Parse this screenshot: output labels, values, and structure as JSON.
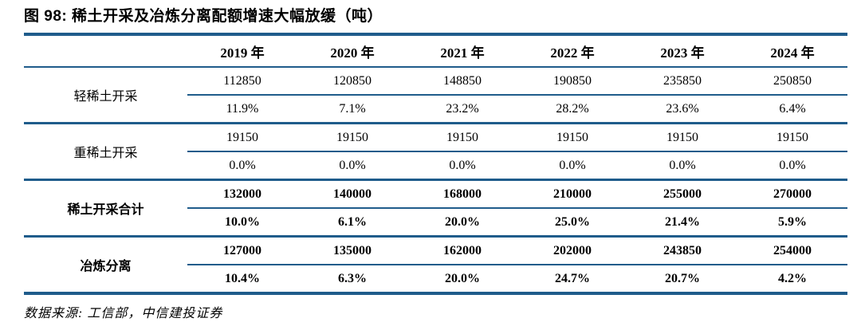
{
  "accent_color": "#1F5C8B",
  "figure": {
    "title": "图 98: 稀土开采及冶炼分离配额增速大幅放缓（吨）",
    "source_note": "数据来源: 工信部，中信建投证券"
  },
  "table": {
    "col_headers": [
      "2019 年",
      "2020 年",
      "2021 年",
      "2022 年",
      "2023 年",
      "2024 年"
    ],
    "groups": [
      {
        "label": "轻稀土开采",
        "values": [
          "112850",
          "120850",
          "148850",
          "190850",
          "235850",
          "250850"
        ],
        "growth": [
          "11.9%",
          "7.1%",
          "23.2%",
          "28.2%",
          "23.6%",
          "6.4%"
        ]
      },
      {
        "label": "重稀土开采",
        "values": [
          "19150",
          "19150",
          "19150",
          "19150",
          "19150",
          "19150"
        ],
        "growth": [
          "0.0%",
          "0.0%",
          "0.0%",
          "0.0%",
          "0.0%",
          "0.0%"
        ]
      },
      {
        "label": "稀土开采合计",
        "values": [
          "132000",
          "140000",
          "168000",
          "210000",
          "255000",
          "270000"
        ],
        "growth": [
          "10.0%",
          "6.1%",
          "20.0%",
          "25.0%",
          "21.4%",
          "5.9%"
        ]
      },
      {
        "label": "冶炼分离",
        "values": [
          "127000",
          "135000",
          "162000",
          "202000",
          "243850",
          "254000"
        ],
        "growth": [
          "10.4%",
          "6.3%",
          "20.0%",
          "24.7%",
          "20.7%",
          "4.2%"
        ]
      }
    ]
  },
  "chart_data": {
    "type": "table",
    "title": "稀土开采及冶炼分离配额增速大幅放缓（吨）",
    "categories": [
      "2019",
      "2020",
      "2021",
      "2022",
      "2023",
      "2024"
    ],
    "series": [
      {
        "name": "轻稀土开采",
        "values": [
          112850,
          120850,
          148850,
          190850,
          235850,
          250850
        ]
      },
      {
        "name": "轻稀土开采增速",
        "values": [
          "11.9%",
          "7.1%",
          "23.2%",
          "28.2%",
          "23.6%",
          "6.4%"
        ]
      },
      {
        "name": "重稀土开采",
        "values": [
          19150,
          19150,
          19150,
          19150,
          19150,
          19150
        ]
      },
      {
        "name": "重稀土开采增速",
        "values": [
          "0.0%",
          "0.0%",
          "0.0%",
          "0.0%",
          "0.0%",
          "0.0%"
        ]
      },
      {
        "name": "稀土开采合计",
        "values": [
          132000,
          140000,
          168000,
          210000,
          255000,
          270000
        ]
      },
      {
        "name": "稀土开采合计增速",
        "values": [
          "10.0%",
          "6.1%",
          "20.0%",
          "25.0%",
          "21.4%",
          "5.9%"
        ]
      },
      {
        "name": "冶炼分离",
        "values": [
          127000,
          135000,
          162000,
          202000,
          243850,
          254000
        ]
      },
      {
        "name": "冶炼分离增速",
        "values": [
          "10.4%",
          "6.3%",
          "20.0%",
          "24.7%",
          "20.7%",
          "4.2%"
        ]
      }
    ]
  }
}
